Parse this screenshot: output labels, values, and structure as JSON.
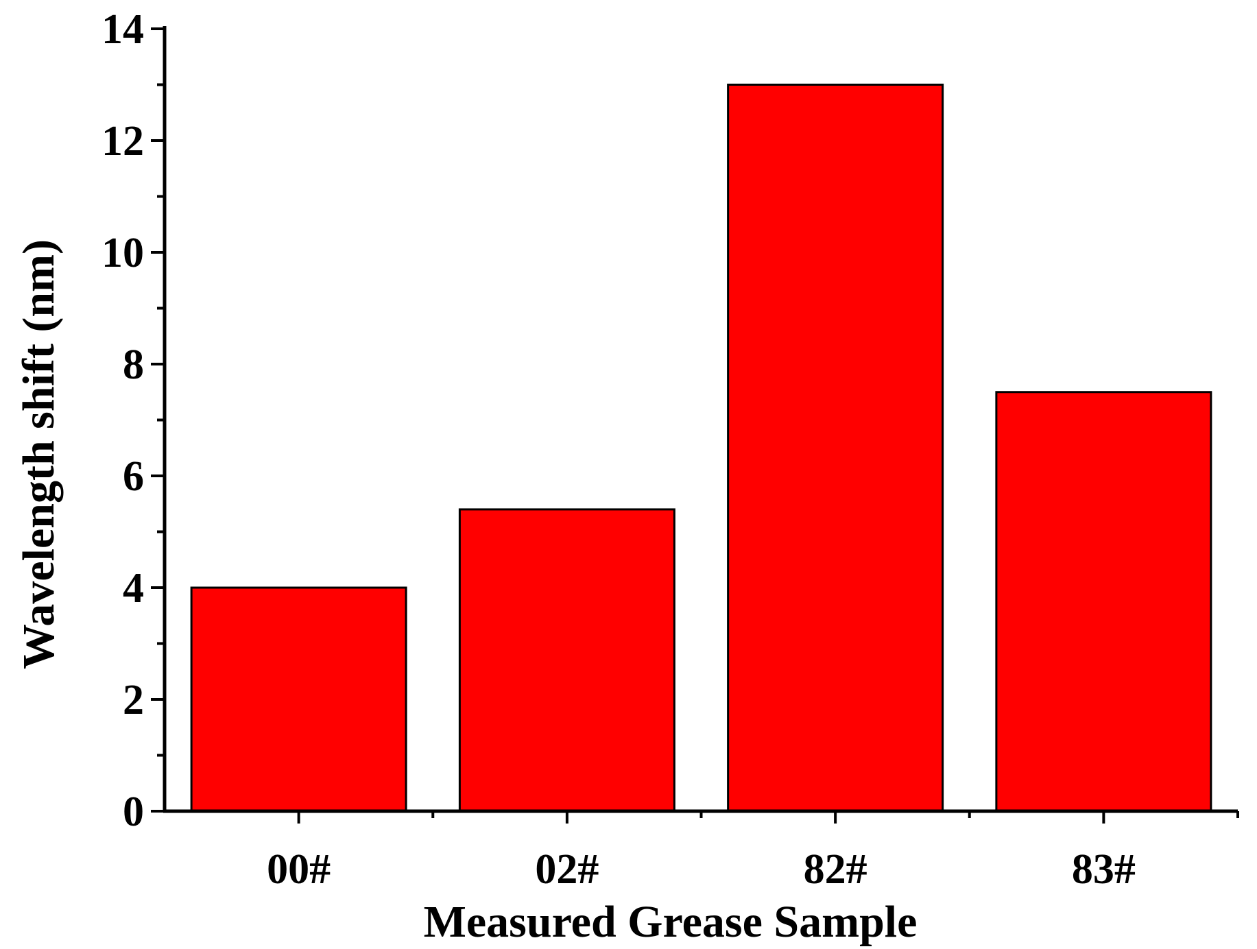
{
  "chart_data": {
    "type": "bar",
    "title": "",
    "xlabel": "Measured Grease Sample",
    "ylabel": "Wavelength shift (nm)",
    "categories": [
      "00#",
      "02#",
      "82#",
      "83#"
    ],
    "series": [
      {
        "values": [
          4.0,
          5.4,
          13.0,
          7.5
        ],
        "color": "#ff0000"
      }
    ],
    "ylim": [
      0,
      14
    ],
    "yticks": [
      "0",
      "2",
      "4",
      "6",
      "8",
      "10",
      "12",
      "14"
    ],
    "grid": false,
    "legend": "none"
  }
}
